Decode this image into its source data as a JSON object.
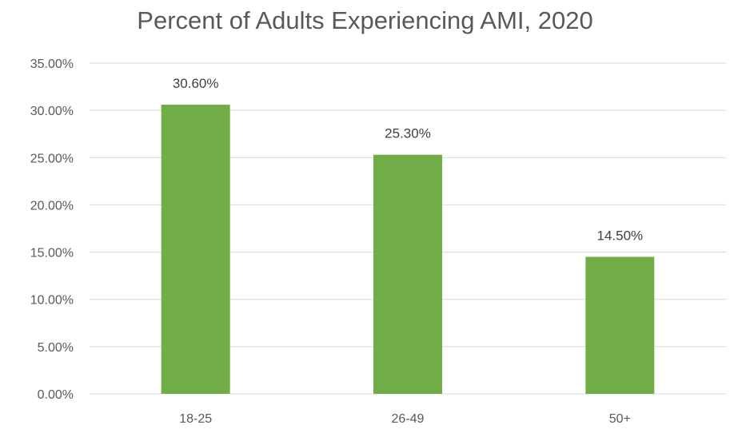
{
  "chart_data": {
    "type": "bar",
    "title": "Percent of Adults Experiencing AMI, 2020",
    "categories": [
      "18-25",
      "26-49",
      "50+"
    ],
    "values": [
      30.6,
      25.3,
      14.5
    ],
    "data_labels": [
      "30.60%",
      "25.30%",
      "14.50%"
    ],
    "ylim": [
      0,
      35
    ],
    "yticks": [
      0,
      5,
      10,
      15,
      20,
      25,
      30,
      35
    ],
    "ytick_labels": [
      "0.00%",
      "5.00%",
      "10.00%",
      "15.00%",
      "20.00%",
      "25.00%",
      "30.00%",
      "35.00%"
    ],
    "xlabel": "",
    "ylabel": "",
    "grid": true,
    "legend": "none",
    "bar_color": "#70ad47",
    "grid_color": "#d9d9d9"
  }
}
